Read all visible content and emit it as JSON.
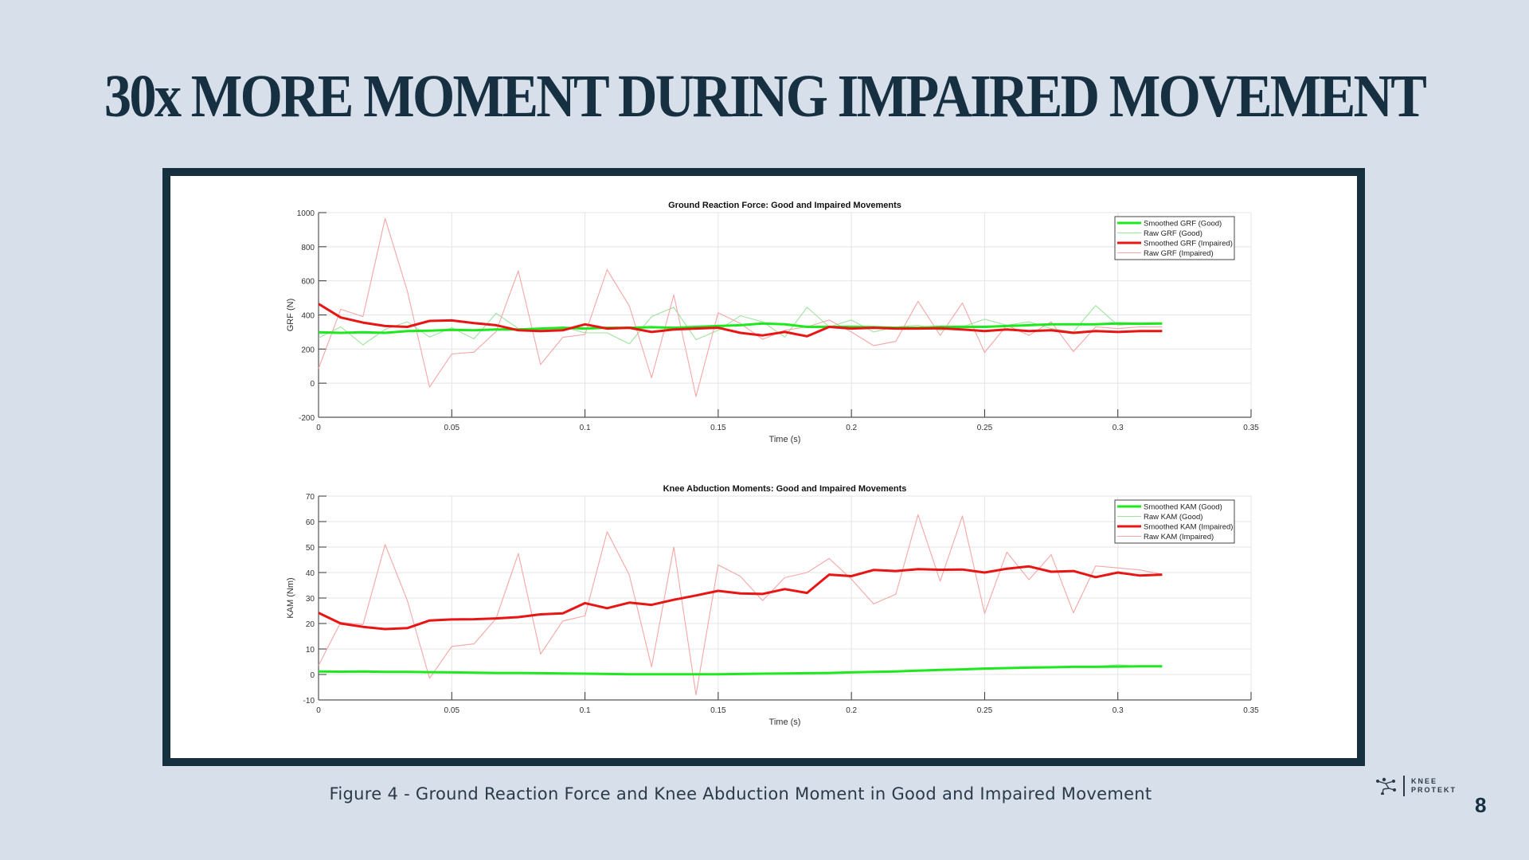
{
  "slide": {
    "title": "30x MORE MOMENT DURING IMPAIRED MOVEMENT",
    "caption": "Figure 4 - Ground Reaction Force and Knee Abduction Moment in Good and Impaired Movement",
    "logo_text_1": "KNEE",
    "logo_text_2": "PROTEKT",
    "page_number": "8"
  },
  "colors": {
    "smoothed_good": "#1ee81e",
    "raw_good": "#9de39d",
    "smoothed_impaired": "#e81515",
    "raw_impaired": "#f5a6a6",
    "background": "#d7dfea",
    "frame": "#17303f"
  },
  "chart_data": [
    {
      "type": "line",
      "title": "Ground Reaction Force: Good and Impaired Movements",
      "xlabel": "Time (s)",
      "ylabel": "GRF (N)",
      "xlim": [
        0,
        0.35
      ],
      "ylim": [
        -200,
        1000
      ],
      "xticks": [
        "0",
        "0.05",
        "0.1",
        "0.15",
        "0.2",
        "0.25",
        "0.3",
        "0.35"
      ],
      "yticks": [
        "-200",
        "0",
        "200",
        "400",
        "600",
        "800",
        "1000"
      ],
      "grid": true,
      "legend_position": "top-right",
      "x_step": 0.008333,
      "series": [
        {
          "name": "Smoothed GRF (Good)",
          "style": "smoothed_good",
          "values": [
            298,
            295,
            298,
            295,
            305,
            308,
            312,
            310,
            315,
            315,
            320,
            325,
            320,
            325,
            325,
            328,
            325,
            330,
            335,
            340,
            350,
            345,
            330,
            330,
            330,
            328,
            325,
            325,
            330,
            330,
            330,
            335,
            340,
            345,
            345,
            345,
            350,
            348,
            350
          ]
        },
        {
          "name": "Raw GRF (Good)",
          "style": "raw_good",
          "values": [
            265,
            330,
            225,
            315,
            360,
            270,
            325,
            260,
            410,
            320,
            315,
            330,
            295,
            295,
            230,
            390,
            445,
            255,
            310,
            395,
            360,
            270,
            445,
            330,
            370,
            300,
            330,
            340,
            310,
            330,
            375,
            340,
            360,
            320,
            300,
            455,
            340,
            350,
            350
          ]
        },
        {
          "name": "Smoothed GRF (Impaired)",
          "style": "smoothed_impaired",
          "values": [
            465,
            385,
            355,
            335,
            330,
            365,
            368,
            352,
            340,
            310,
            305,
            310,
            345,
            320,
            325,
            300,
            315,
            320,
            325,
            295,
            280,
            300,
            275,
            330,
            320,
            325,
            320,
            320,
            322,
            315,
            305,
            315,
            305,
            310,
            295,
            305,
            300,
            305,
            305
          ]
        },
        {
          "name": "Raw GRF (Impaired)",
          "style": "raw_impaired",
          "values": [
            85,
            433,
            390,
            966,
            540,
            -23,
            171,
            182,
            303,
            659,
            109,
            269,
            285,
            665,
            452,
            31,
            517,
            -78,
            413,
            350,
            257,
            310,
            330,
            370,
            300,
            220,
            245,
            480,
            280,
            470,
            180,
            340,
            280,
            360,
            185,
            330,
            320,
            330,
            330
          ]
        }
      ]
    },
    {
      "type": "line",
      "title": "Knee Abduction Moments: Good and Impaired Movements",
      "xlabel": "Time (s)",
      "ylabel": "KAM (Nm)",
      "xlim": [
        0,
        0.35
      ],
      "ylim": [
        -10,
        70
      ],
      "xticks": [
        "0",
        "0.05",
        "0.1",
        "0.15",
        "0.2",
        "0.25",
        "0.3",
        "0.35"
      ],
      "yticks": [
        "-10",
        "0",
        "10",
        "20",
        "30",
        "40",
        "50",
        "60",
        "70"
      ],
      "grid": true,
      "legend_position": "top-right",
      "x_step": 0.008333,
      "series": [
        {
          "name": "Smoothed KAM (Good)",
          "style": "smoothed_good",
          "values": [
            1.2,
            1.1,
            1.2,
            1.0,
            1.0,
            0.9,
            0.8,
            0.7,
            0.6,
            0.6,
            0.5,
            0.4,
            0.3,
            0.2,
            0.1,
            0.1,
            0.1,
            0.1,
            0.1,
            0.2,
            0.3,
            0.4,
            0.5,
            0.6,
            0.8,
            1.0,
            1.2,
            1.5,
            1.8,
            2.0,
            2.3,
            2.5,
            2.7,
            2.8,
            3.0,
            3.0,
            3.1,
            3.2,
            3.2
          ]
        },
        {
          "name": "Raw KAM (Good)",
          "style": "raw_good",
          "values": [
            1.0,
            1.3,
            1.1,
            1.1,
            0.9,
            1.0,
            0.7,
            0.8,
            0.5,
            0.7,
            0.4,
            0.5,
            0.2,
            0.3,
            0.0,
            0.2,
            0.0,
            0.2,
            0.1,
            0.3,
            0.2,
            0.5,
            0.4,
            0.7,
            0.7,
            1.1,
            1.1,
            1.6,
            1.7,
            2.1,
            2.2,
            2.7,
            2.6,
            3.0,
            2.9,
            3.1,
            3.8,
            3.1,
            3.3
          ]
        },
        {
          "name": "Smoothed KAM (Impaired)",
          "style": "smoothed_impaired",
          "values": [
            24.2,
            20,
            18.7,
            17.8,
            18.2,
            21.2,
            21.6,
            21.7,
            22,
            22.5,
            23.6,
            24,
            28,
            26,
            28.2,
            27.3,
            29.3,
            31,
            32.8,
            31.8,
            31.6,
            33.5,
            32,
            39.2,
            38.6,
            41,
            40.6,
            41.3,
            41.1,
            41.2,
            40,
            41.5,
            42.4,
            40.3,
            40.6,
            38.2,
            40,
            38.8,
            39.2
          ]
        },
        {
          "name": "Raw KAM (Impaired)",
          "style": "raw_impaired",
          "values": [
            3.5,
            20.5,
            19.5,
            51,
            29,
            -1.5,
            11,
            12,
            22,
            47.5,
            8,
            21,
            23,
            56,
            39,
            3,
            50,
            -8,
            43,
            38.5,
            29,
            38,
            40,
            45.5,
            37.4,
            27.7,
            31.5,
            62.7,
            36.6,
            62.2,
            23.9,
            48,
            37.2,
            47,
            24.2,
            42.6,
            41.8,
            41,
            39.3
          ]
        }
      ]
    }
  ]
}
